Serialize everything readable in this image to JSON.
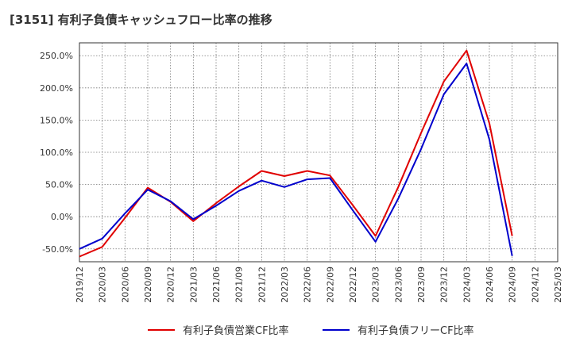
{
  "chart_data": {
    "type": "line",
    "title": "[3151]  有利子負債キャッシュフロー比率の推移",
    "xlabel": "",
    "ylabel": "",
    "ylim": [
      -70,
      270
    ],
    "y_ticks": [
      -50,
      0,
      50,
      100,
      150,
      200,
      250
    ],
    "y_tick_labels": [
      "-50.0%",
      "0.0%",
      "50.0%",
      "100.0%",
      "150.0%",
      "200.0%",
      "250.0%"
    ],
    "x_tick_labels": [
      "2019/12",
      "2020/03",
      "2020/06",
      "2020/09",
      "2020/12",
      "2021/03",
      "2021/06",
      "2021/09",
      "2021/12",
      "2022/03",
      "2022/06",
      "2022/09",
      "2022/12",
      "2023/03",
      "2023/06",
      "2023/09",
      "2023/12",
      "2024/03",
      "2024/06",
      "2024/09",
      "2024/12",
      "2025/03"
    ],
    "grid": true,
    "legend_position": "bottom",
    "series": [
      {
        "name": "有利子負債営業CF比率",
        "color": "#e00000",
        "values": [
          -62,
          -47,
          -2,
          45,
          23,
          -7,
          21,
          47,
          71,
          63,
          71,
          64,
          18,
          -30,
          46,
          130,
          210,
          258,
          145,
          -30,
          null,
          null
        ]
      },
      {
        "name": "有利子負債フリーCF比率",
        "color": "#0000cc",
        "values": [
          -50,
          -34,
          5,
          42,
          24,
          -4,
          17,
          40,
          56,
          46,
          58,
          60,
          10,
          -39,
          28,
          105,
          190,
          238,
          120,
          -61,
          null,
          null
        ]
      }
    ]
  }
}
